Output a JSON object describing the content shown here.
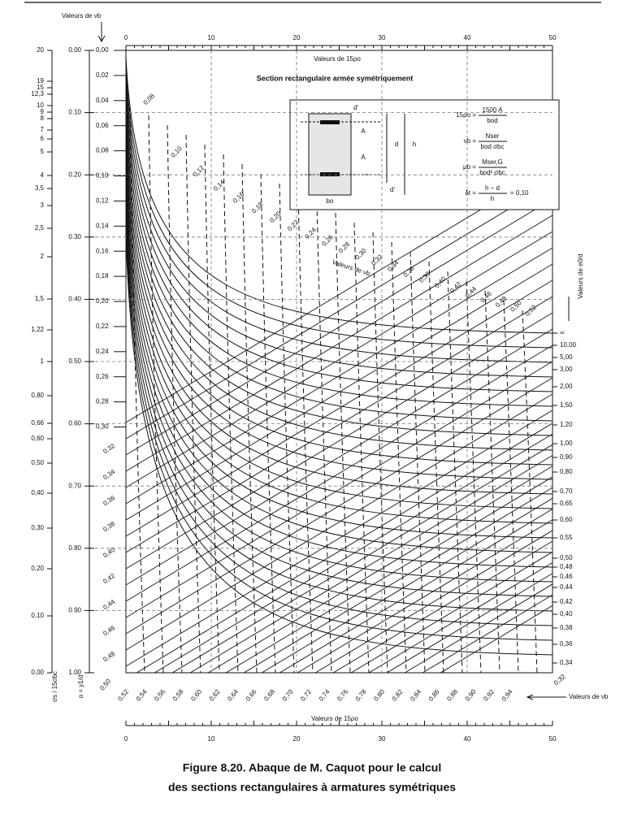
{
  "figure": {
    "nu_b_title": "Valeurs de νb",
    "top_axis": {
      "title": "Valeurs de 15ρo",
      "ticks": [
        "0",
        "10",
        "20",
        "30",
        "40",
        "50"
      ]
    },
    "bottom_axis": {
      "title": "Valeurs de 15ρo",
      "ticks": [
        "0",
        "10",
        "20",
        "30",
        "40",
        "50"
      ]
    },
    "sigma_scale": {
      "label": "σs / 15σbc",
      "ticks": [
        "20",
        "19",
        "15",
        "12,3",
        "10",
        "9",
        "8",
        "7",
        "6",
        "5",
        "4",
        "3,5",
        "3",
        "2,5",
        "2",
        "1,5",
        "1,22",
        "1",
        "0,80",
        "0,66",
        "0,60",
        "0,50",
        "0,40",
        "0,30",
        "0,20",
        "0,10",
        "0,00"
      ]
    },
    "alpha_scale": {
      "label": "α = y1/d",
      "ticks": [
        "0,00",
        "0.10",
        "0.20",
        "0.30",
        "0.40",
        "0.50",
        "0.60",
        "0.70",
        "0.80",
        "0.90",
        "1.00"
      ]
    },
    "nu_scale": {
      "ticks": [
        "0,00",
        "0,02",
        "0,04",
        "0,06",
        "0,08",
        "0,10",
        "0,12",
        "0,14",
        "0,16",
        "0,18",
        "0,20",
        "0,22",
        "0,24",
        "0,26",
        "0,28",
        "0,30"
      ],
      "diagonal": [
        "0,32",
        "0,34",
        "0,36",
        "0,38",
        "0,40",
        "0,42",
        "0,44",
        "0,46",
        "0,48"
      ]
    },
    "curve_labels": [
      "0,08",
      "0,10",
      "0,12",
      "0,14",
      "0,16",
      "0,18",
      "0,20",
      "0,22",
      "0,24",
      "0,26",
      "0,28",
      "0,30",
      "0,32",
      "0,34",
      "0,36",
      "0,38",
      "0,40",
      "0,42",
      "0,44",
      "0,46",
      "0,48",
      "0,50",
      "0,52"
    ],
    "curve_title": "Valeurs de νb",
    "bottom_labels": [
      "0,50",
      "0,52",
      "0,54",
      "0,56",
      "0,58",
      "0,60",
      "0,62",
      "0,64",
      "0,66",
      "0,68",
      "0,70",
      "0,72",
      "0,74",
      "0,76",
      "0,78",
      "0,80",
      "0,82",
      "0,84",
      "0,86",
      "0,88",
      "0,90",
      "0,92",
      "0,94"
    ],
    "bottom_right": {
      "value": "0,32",
      "title": "Valeurs de νb"
    },
    "right_scale": {
      "label": "Valeurs de e0/d",
      "ticks": [
        "∞",
        "10,00",
        "5,00",
        "3,00",
        "2,00",
        "1,50",
        "1,20",
        "1,00",
        "0,90",
        "0,80",
        "0,70",
        "0,65",
        "0,60",
        "0,55",
        "0,50",
        "0,48",
        "0,46",
        "0,44",
        "0,42",
        "0,40",
        "0,38",
        "0,36",
        "0,34"
      ]
    },
    "inset": {
      "title": "Section rectangulaire armée symétriquement",
      "labels": [
        "d'",
        "A",
        "A",
        "d",
        "h",
        "d'",
        "bo"
      ],
      "formulas": [
        {
          "lhs": "15ρo =",
          "num": "1500 A",
          "den": "bod"
        },
        {
          "lhs": "νb =",
          "num": "Nser",
          "den": "bod σbc"
        },
        {
          "lhs": "μb =",
          "num": "Mser,G",
          "den": "bod² σbc"
        },
        {
          "lhs": "δt =",
          "num": "h − d",
          "den": "h",
          "tail": "= 0,10"
        }
      ]
    },
    "caption": [
      "Figure 8.20. Abaque de M. Caquot pour le calcul",
      "des sections rectangulaires à armatures symétriques"
    ]
  }
}
